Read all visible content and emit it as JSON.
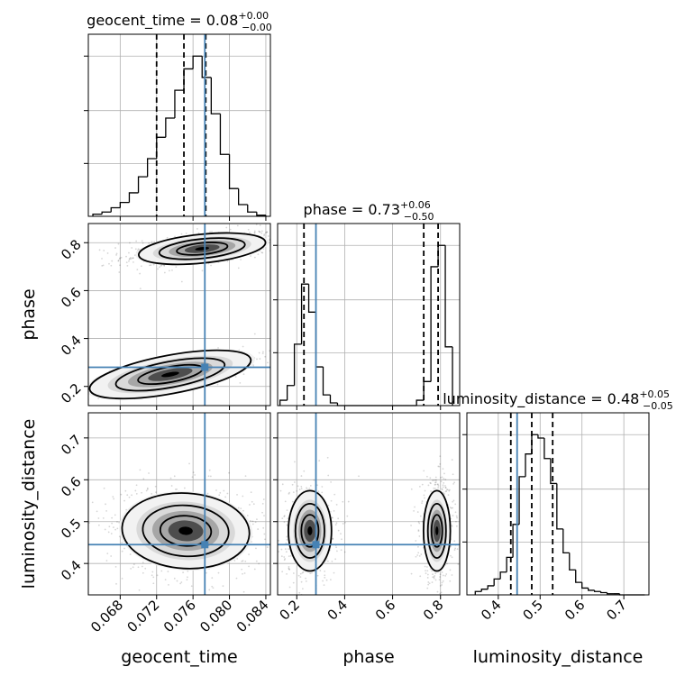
{
  "chart_data": {
    "type": "corner",
    "parameters": [
      "geocent_time",
      "phase",
      "luminosity_distance"
    ],
    "axis_labels": [
      "geocent_time",
      "phase",
      "luminosity_distance"
    ],
    "titles": [
      {
        "label": "geocent_time = 0.08",
        "sup": "+0.00",
        "sub": "−0.00"
      },
      {
        "label": "phase = 0.73",
        "sup": "+0.06",
        "sub": "−0.50"
      },
      {
        "label": "luminosity_distance = 0.48",
        "sup": "+0.05",
        "sub": "−0.05"
      }
    ],
    "ranges": [
      [
        0.0645,
        0.0845
      ],
      [
        0.12,
        0.88
      ],
      [
        0.325,
        0.76
      ]
    ],
    "ticks": [
      {
        "values": [
          0.068,
          0.072,
          0.076,
          0.08,
          0.084
        ],
        "labels": [
          "0.068",
          "0.072",
          "0.076",
          "0.080",
          "0.084"
        ]
      },
      {
        "values": [
          0.2,
          0.4,
          0.6,
          0.8
        ],
        "labels": [
          "0.2",
          "0.4",
          "0.6",
          "0.8"
        ]
      },
      {
        "values": [
          0.4,
          0.5,
          0.6,
          0.7
        ],
        "labels": [
          "0.4",
          "0.5",
          "0.6",
          "0.7"
        ]
      }
    ],
    "truths": [
      0.0773,
      0.28,
      0.445
    ],
    "quantiles": [
      [
        0.072,
        0.075,
        0.0774
      ],
      [
        0.23,
        0.73,
        0.79
      ],
      [
        0.43,
        0.48,
        0.53
      ]
    ],
    "histograms": [
      {
        "param": "geocent_time",
        "bin_edges": [
          0.065,
          0.066,
          0.067,
          0.068,
          0.069,
          0.07,
          0.071,
          0.072,
          0.073,
          0.074,
          0.075,
          0.076,
          0.077,
          0.078,
          0.079,
          0.08,
          0.081,
          0.082,
          0.083,
          0.084
        ],
        "counts": [
          2,
          4,
          8,
          13,
          22,
          37,
          54,
          74,
          92,
          118,
          138,
          150,
          130,
          96,
          58,
          26,
          11,
          4,
          1
        ]
      },
      {
        "param": "phase",
        "bin_edges": [
          0.13,
          0.16,
          0.19,
          0.22,
          0.25,
          0.28,
          0.31,
          0.34,
          0.37,
          0.4,
          0.43,
          0.46,
          0.49,
          0.52,
          0.55,
          0.58,
          0.61,
          0.64,
          0.67,
          0.7,
          0.73,
          0.76,
          0.79,
          0.82,
          0.85
        ],
        "counts": [
          4,
          15,
          46,
          91,
          70,
          29,
          8,
          2,
          0,
          0,
          0,
          0,
          0,
          0,
          0,
          0,
          0,
          0,
          0,
          4,
          18,
          104,
          120,
          44
        ]
      },
      {
        "param": "luminosity_distance",
        "bin_edges": [
          0.345,
          0.36,
          0.375,
          0.39,
          0.405,
          0.42,
          0.435,
          0.45,
          0.465,
          0.48,
          0.495,
          0.51,
          0.525,
          0.54,
          0.555,
          0.57,
          0.585,
          0.6,
          0.615,
          0.63,
          0.645,
          0.66,
          0.675,
          0.69,
          0.705,
          0.72,
          0.735,
          0.75
        ],
        "counts": [
          3,
          5,
          8,
          14,
          20,
          33,
          62,
          104,
          124,
          141,
          138,
          120,
          98,
          58,
          37,
          22,
          11,
          6,
          4,
          3,
          2,
          1,
          1,
          0,
          0,
          0,
          0
        ]
      }
    ],
    "blobs": [
      {
        "x": "geocent_time",
        "y": "phase",
        "cx": 0.077,
        "cy": 0.775,
        "sx": 0.0035,
        "sy": 0.03,
        "rho": 0.45,
        "weight": 1.0
      },
      {
        "x": "geocent_time",
        "y": "phase",
        "cx": 0.0735,
        "cy": 0.25,
        "sx": 0.0045,
        "sy": 0.04,
        "rho": 0.8,
        "weight": 0.85
      },
      {
        "x": "geocent_time",
        "y": "luminosity_distance",
        "cx": 0.0752,
        "cy": 0.478,
        "sx": 0.0035,
        "sy": 0.045,
        "rho": -0.1,
        "weight": 1.0
      },
      {
        "x": "phase",
        "y": "luminosity_distance",
        "cx": 0.255,
        "cy": 0.478,
        "sx": 0.045,
        "sy": 0.048,
        "rho": 0.0,
        "weight": 0.85
      },
      {
        "x": "phase",
        "y": "luminosity_distance",
        "cx": 0.785,
        "cy": 0.478,
        "sx": 0.028,
        "sy": 0.048,
        "rho": 0.0,
        "weight": 1.0
      }
    ]
  }
}
